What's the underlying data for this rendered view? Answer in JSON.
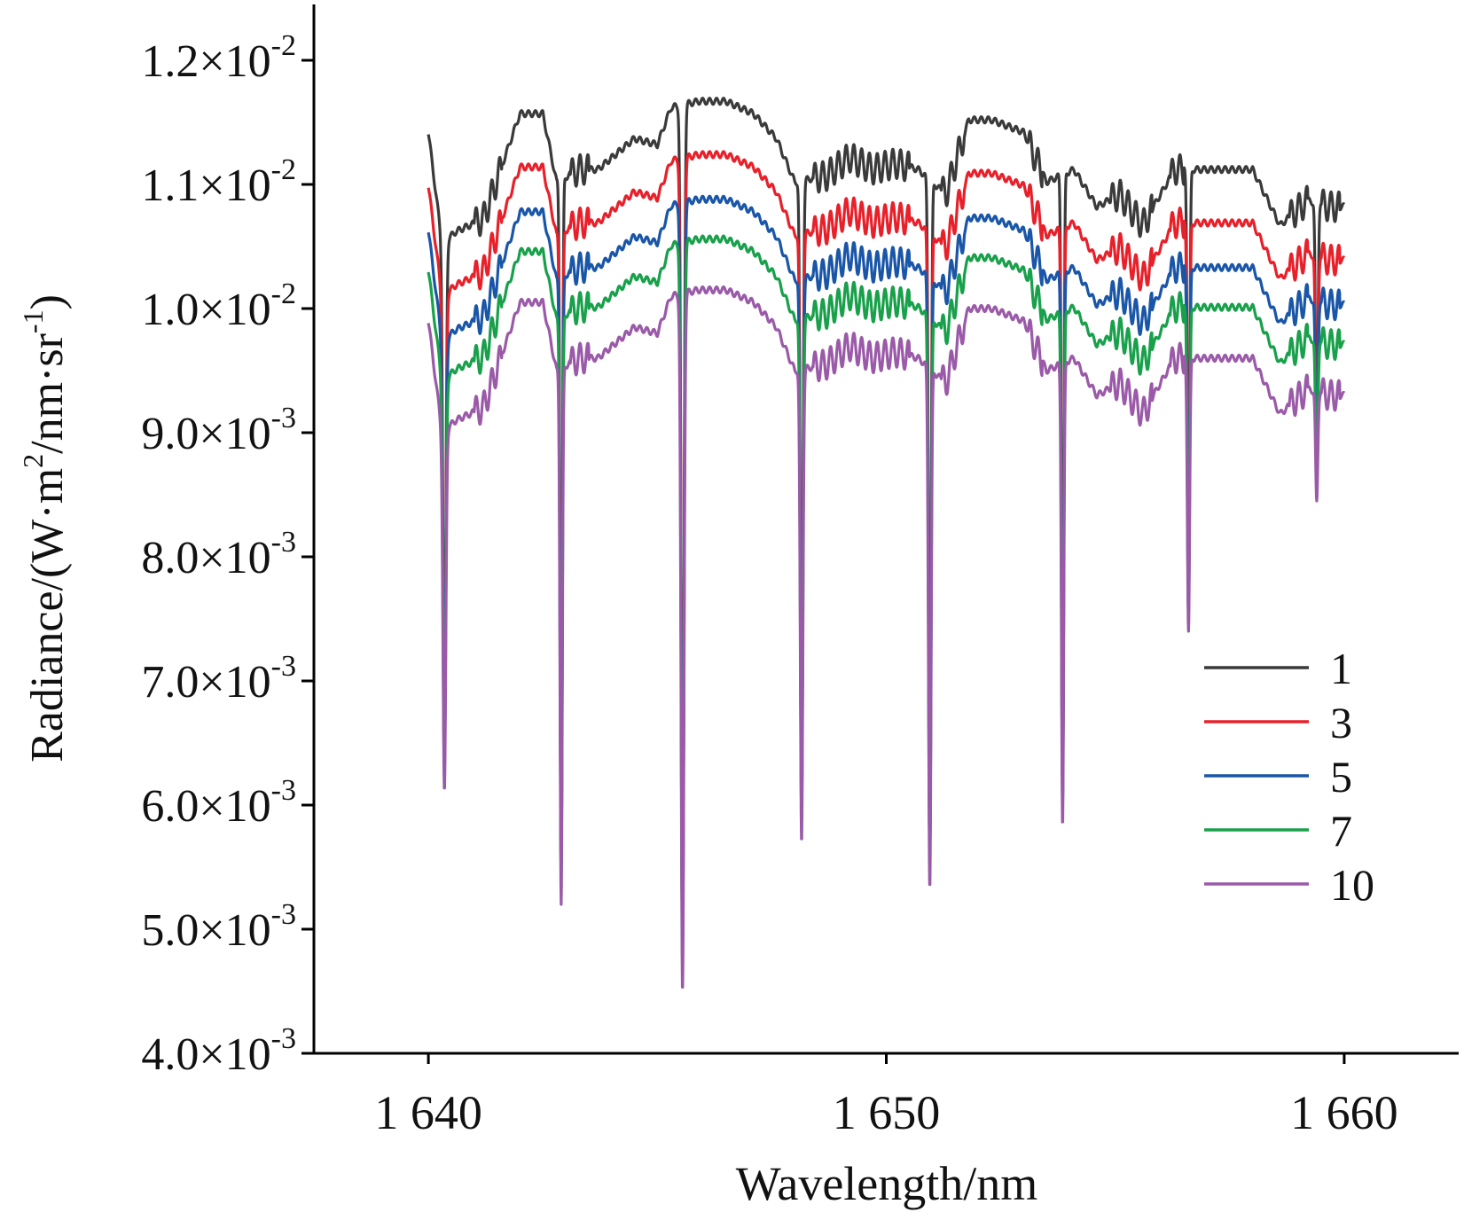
{
  "colors": {
    "series_1": "#3a3a3a",
    "series_3": "#e8202a",
    "series_5": "#1a56a8",
    "series_7": "#18a04a",
    "series_10": "#9a5aa8",
    "axis": "#000000"
  },
  "chart_data": {
    "type": "line",
    "title": "",
    "xlabel": "Wavelength/nm",
    "ylabel": {
      "base": "Radiance/(W·m",
      "sup1": "2",
      "mid": "/nm·sr",
      "sup2": "-1",
      "end": ")"
    },
    "xlim": [
      1637.5,
      1662.5
    ],
    "ylim": [
      0.004,
      0.01245
    ],
    "grid": false,
    "legend_position": "right",
    "x_ticks": [
      {
        "value": 1640,
        "label": "1 640"
      },
      {
        "value": 1650,
        "label": "1 650"
      },
      {
        "value": 1660,
        "label": "1 660"
      }
    ],
    "y_ticks": [
      {
        "value": 0.004,
        "mantissa": "4.0×10",
        "exp": "-3"
      },
      {
        "value": 0.005,
        "mantissa": "5.0×10",
        "exp": "-3"
      },
      {
        "value": 0.006,
        "mantissa": "6.0×10",
        "exp": "-3"
      },
      {
        "value": 0.007,
        "mantissa": "7.0×10",
        "exp": "-3"
      },
      {
        "value": 0.008,
        "mantissa": "8.0×10",
        "exp": "-3"
      },
      {
        "value": 0.009,
        "mantissa": "9.0×10",
        "exp": "-3"
      },
      {
        "value": 0.01,
        "mantissa": "1.0×10",
        "exp": "-2"
      },
      {
        "value": 0.011,
        "mantissa": "1.1×10",
        "exp": "-2"
      },
      {
        "value": 0.012,
        "mantissa": "1.2×10",
        "exp": "-2"
      }
    ],
    "shape": {
      "x": [
        1640.0,
        1640.3,
        1640.6,
        1641.2,
        1642.0,
        1642.5,
        1642.8,
        1643.3,
        1643.7,
        1644.5,
        1645.0,
        1645.3,
        1645.9,
        1646.5,
        1647.1,
        1647.6,
        1648.0,
        1648.7,
        1649.2,
        1649.7,
        1650.2,
        1650.7,
        1651.3,
        1651.8,
        1652.3,
        1653.0,
        1653.5,
        1654.1,
        1654.6,
        1655.1,
        1655.6,
        1656.3,
        1656.8,
        1657.3,
        1658.0,
        1658.6,
        1659.2,
        1659.7,
        1660.0
      ],
      "rel": [
        0.0,
        -0.0009,
        -0.0008,
        -0.0007,
        0.00015,
        0.00015,
        -0.0004,
        -0.0003,
        -0.0003,
        -5e-05,
        -0.0001,
        0.0002,
        0.00025,
        0.00025,
        0.00015,
        -5e-05,
        -0.0004,
        -0.00035,
        -0.0002,
        -0.0003,
        -0.00025,
        -0.0003,
        -0.0005,
        0.0001,
        0.0001,
        0.0,
        -0.0004,
        -0.0003,
        -0.0006,
        -0.0005,
        -0.00075,
        -0.0003,
        -0.0003,
        -0.0003,
        -0.0003,
        -0.00075,
        -0.00055,
        -0.0006,
        -0.0006
      ]
    },
    "ripples": [
      [
        1641.0,
        1641.6
      ],
      [
        1643.1,
        1643.5
      ],
      [
        1648.4,
        1650.5
      ],
      [
        1651.2,
        1651.7
      ],
      [
        1653.1,
        1653.4
      ],
      [
        1654.9,
        1655.8
      ],
      [
        1656.2,
        1656.5
      ],
      [
        1658.8,
        1659.2
      ],
      [
        1659.5,
        1659.9
      ]
    ],
    "dips": [
      {
        "x": 1640.35,
        "width": 0.1,
        "min": 0.00612
      },
      {
        "x": 1642.9,
        "width": 0.08,
        "min": 0.0052
      },
      {
        "x": 1645.55,
        "width": 0.1,
        "min": 0.0045
      },
      {
        "x": 1648.15,
        "width": 0.09,
        "min": 0.0057
      },
      {
        "x": 1650.95,
        "width": 0.09,
        "min": 0.00533
      },
      {
        "x": 1653.85,
        "width": 0.08,
        "min": 0.00583
      },
      {
        "x": 1656.6,
        "width": 0.08,
        "min": 0.0074
      },
      {
        "x": 1659.4,
        "width": 0.08,
        "min": 0.00845
      }
    ],
    "series": [
      {
        "name": "1",
        "color": "#3a3a3a",
        "base": 0.01142
      },
      {
        "name": "3",
        "color": "#e8202a",
        "base": 0.01099
      },
      {
        "name": "5",
        "color": "#1a56a8",
        "base": 0.01063
      },
      {
        "name": "7",
        "color": "#18a04a",
        "base": 0.01031
      },
      {
        "name": "10",
        "color": "#9a5aa8",
        "base": 0.0099
      }
    ]
  }
}
